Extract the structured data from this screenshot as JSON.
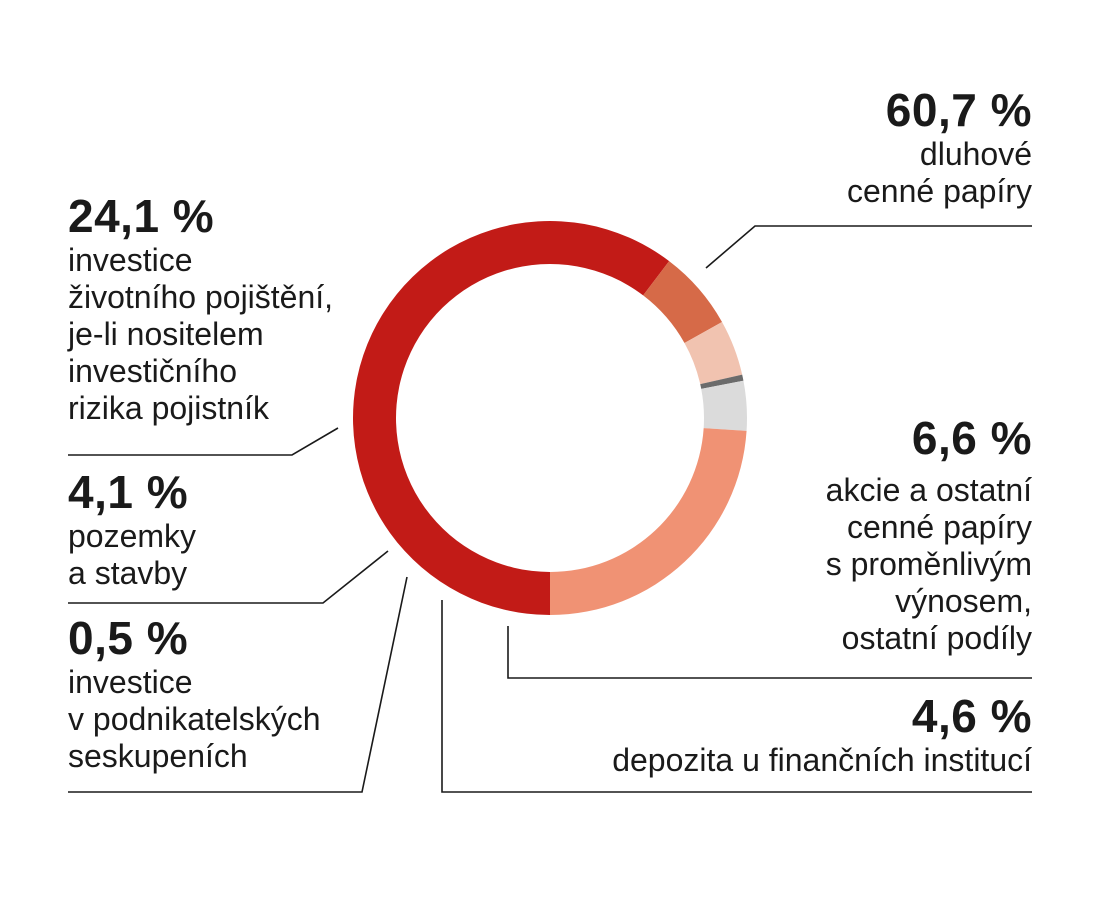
{
  "colors": {
    "debt_securities": "#c21b17",
    "life_insurance_investments": "#f09274",
    "land_buildings": "#dbdbdb",
    "group_investments": "#6b6b6b",
    "deposits": "#f1c3b0",
    "equities": "#d66a48",
    "leader_lines": "#1a1a1a"
  },
  "chart_data": {
    "type": "pie",
    "donut": true,
    "title": "",
    "slices": [
      {
        "key": "debt_securities",
        "value": 60.7,
        "pct_label": "60,7 %",
        "label_lines": [
          "dluhové",
          "cenné papíry"
        ]
      },
      {
        "key": "equities",
        "value": 6.6,
        "pct_label": "6,6 %",
        "label_lines": [
          "akcie a ostatní",
          "cenné papíry",
          "s proměnlivým",
          "výnosem,",
          "ostatní podíly"
        ]
      },
      {
        "key": "deposits",
        "value": 4.6,
        "pct_label": "4,6 %",
        "label_lines": [
          "depozita u finančních institucí"
        ]
      },
      {
        "key": "group_investments",
        "value": 0.5,
        "pct_label": "0,5 %",
        "label_lines": [
          "investice",
          "v podnikatelských",
          "seskupeních"
        ]
      },
      {
        "key": "land_buildings",
        "value": 4.1,
        "pct_label": "4,1 %",
        "label_lines": [
          "pozemky",
          "a stavby"
        ]
      },
      {
        "key": "life_insurance_investments",
        "value": 24.1,
        "pct_label": "24,1 %",
        "label_lines": [
          "investice",
          "životního pojištění,",
          "je-li nositelem",
          "investičního",
          "rizika pojistník"
        ]
      }
    ]
  }
}
